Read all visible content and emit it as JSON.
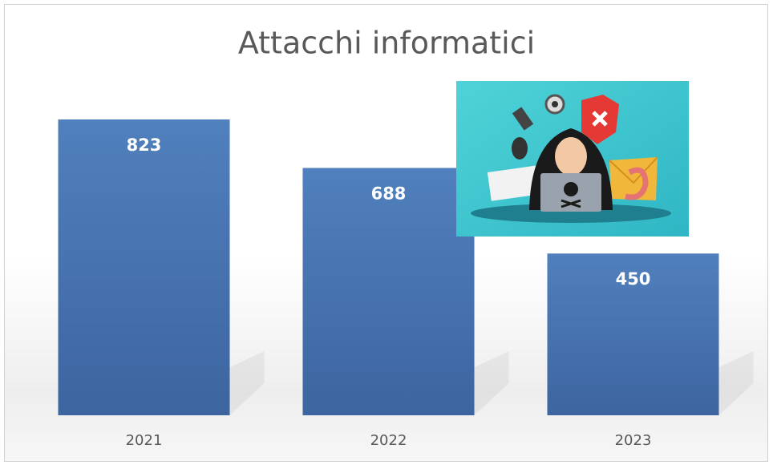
{
  "chart_data": {
    "type": "bar",
    "title": "Attacchi informatici",
    "categories": [
      "2021",
      "2022",
      "2023"
    ],
    "values": [
      823,
      688,
      450
    ],
    "color": "#4a7ab8"
  }
}
